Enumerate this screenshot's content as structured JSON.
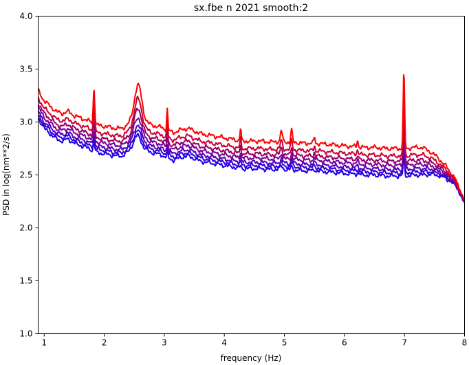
{
  "chart_data": {
    "type": "line",
    "title": "sx.fbe n 2021 smooth:2",
    "xlabel": "frequency (Hz)",
    "ylabel": "PSD in log(nm**2/s)",
    "xlim": [
      0.9,
      8.0
    ],
    "ylim": [
      1.0,
      4.0
    ],
    "xticks": [
      1,
      2,
      3,
      4,
      5,
      6,
      7,
      8
    ],
    "xtick_labels": [
      "1",
      "2",
      "3",
      "4",
      "5",
      "6",
      "7",
      "8"
    ],
    "yticks": [
      1.0,
      1.5,
      2.0,
      2.5,
      3.0,
      3.5,
      4.0
    ],
    "ytick_labels": [
      "1.0",
      "1.5",
      "2.0",
      "2.5",
      "3.0",
      "3.5",
      "4.0"
    ],
    "grid": false,
    "legend": "none",
    "color_gradient": [
      "#ff0000",
      "#cc0033",
      "#990066",
      "#7a0099",
      "#5000bb",
      "#3000dd",
      "#1a00ee"
    ],
    "base_curve": {
      "x": [
        0.9,
        0.95,
        1.0,
        1.1,
        1.2,
        1.3,
        1.4,
        1.5,
        1.6,
        1.7,
        1.78,
        1.83,
        1.9,
        2.0,
        2.1,
        2.2,
        2.3,
        2.4,
        2.5,
        2.55,
        2.65,
        2.8,
        2.95,
        3.05,
        3.15,
        3.3,
        3.4,
        3.6,
        3.8,
        4.0,
        4.2,
        4.27,
        4.35,
        4.6,
        4.8,
        4.95,
        5.05,
        5.15,
        5.3,
        5.5,
        5.7,
        5.9,
        6.1,
        6.2,
        6.3,
        6.5,
        6.7,
        6.9,
        6.98,
        7.05,
        7.15,
        7.3,
        7.45,
        7.55,
        7.7,
        7.85,
        8.0
      ],
      "y": [
        3.12,
        3.07,
        3.02,
        2.97,
        2.92,
        2.9,
        2.92,
        2.88,
        2.86,
        2.84,
        2.82,
        2.8,
        2.79,
        2.78,
        2.77,
        2.76,
        2.76,
        2.8,
        2.87,
        2.88,
        2.82,
        2.79,
        2.77,
        2.74,
        2.72,
        2.75,
        2.76,
        2.71,
        2.69,
        2.67,
        2.65,
        2.64,
        2.64,
        2.64,
        2.63,
        2.64,
        2.63,
        2.63,
        2.62,
        2.62,
        2.61,
        2.6,
        2.59,
        2.59,
        2.58,
        2.58,
        2.57,
        2.57,
        2.57,
        2.57,
        2.58,
        2.58,
        2.57,
        2.55,
        2.5,
        2.42,
        2.25
      ]
    },
    "series": [
      {
        "offset": 0.18,
        "color": "#ff0000",
        "peak_scale": 1.0
      },
      {
        "offset": 0.11,
        "color": "#cc0033",
        "peak_scale": 0.8
      },
      {
        "offset": 0.06,
        "color": "#990066",
        "peak_scale": 0.65
      },
      {
        "offset": 0.02,
        "color": "#7a0099",
        "peak_scale": 0.5
      },
      {
        "offset": -0.02,
        "color": "#5000bb",
        "peak_scale": 0.4
      },
      {
        "offset": -0.05,
        "color": "#3000dd",
        "peak_scale": 0.32
      },
      {
        "offset": -0.08,
        "color": "#1a00ee",
        "peak_scale": 0.26
      }
    ],
    "peaks": [
      {
        "x": 1.83,
        "height": 0.35,
        "width": 0.012
      },
      {
        "x": 2.57,
        "height": 0.3,
        "width": 0.06
      },
      {
        "x": 3.05,
        "height": 0.2,
        "width": 0.01
      },
      {
        "x": 4.27,
        "height": 0.12,
        "width": 0.01
      },
      {
        "x": 4.95,
        "height": 0.1,
        "width": 0.015
      },
      {
        "x": 5.12,
        "height": 0.12,
        "width": 0.012
      },
      {
        "x": 5.5,
        "height": 0.06,
        "width": 0.01
      },
      {
        "x": 6.22,
        "height": 0.06,
        "width": 0.01
      },
      {
        "x": 6.99,
        "height": 0.72,
        "width": 0.012
      }
    ]
  }
}
